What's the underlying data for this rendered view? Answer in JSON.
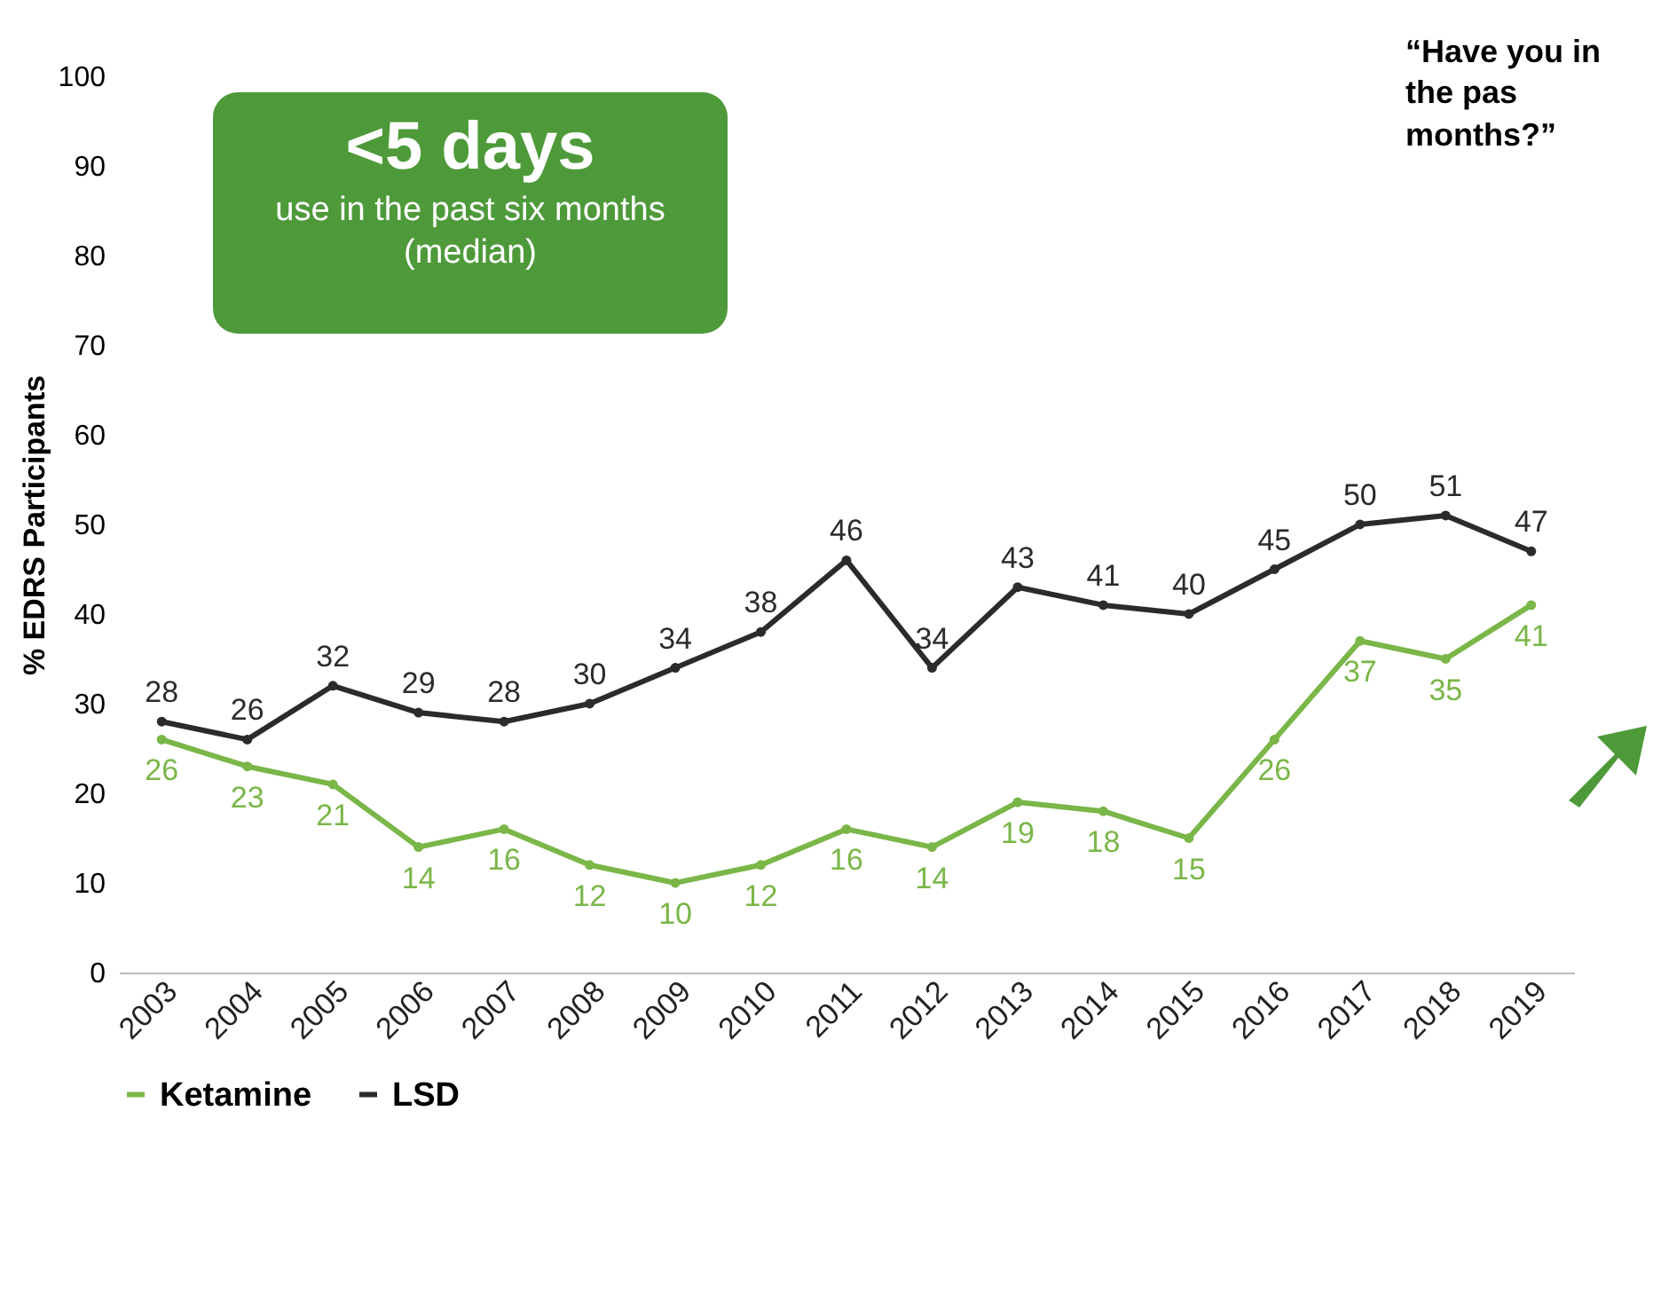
{
  "chart_data": {
    "type": "line",
    "ylabel": "% EDRS Participants",
    "categories": [
      "2003",
      "2004",
      "2005",
      "2006",
      "2007",
      "2008",
      "2009",
      "2010",
      "2011",
      "2012",
      "2013",
      "2014",
      "2015",
      "2016",
      "2017",
      "2018",
      "2019"
    ],
    "series": [
      {
        "name": "Ketamine",
        "color": "#7ab648",
        "values": [
          26,
          23,
          21,
          14,
          16,
          12,
          10,
          12,
          16,
          14,
          19,
          18,
          15,
          26,
          37,
          35,
          41
        ]
      },
      {
        "name": "LSD",
        "color": "#2b2b2b",
        "values": [
          28,
          26,
          32,
          29,
          28,
          30,
          34,
          38,
          46,
          34,
          43,
          41,
          40,
          45,
          50,
          51,
          47
        ]
      }
    ],
    "ylim": [
      0,
      100
    ],
    "yticks": [
      0,
      10,
      20,
      30,
      40,
      50,
      60,
      70,
      80,
      90,
      100
    ],
    "grid": false,
    "legend": "bottom",
    "marker": "circle",
    "line_style": "solid",
    "data_labels": true,
    "annotations": [
      "<5 days",
      "use in the past six months (median)",
      "“Have you in the pas months?”"
    ]
  }
}
